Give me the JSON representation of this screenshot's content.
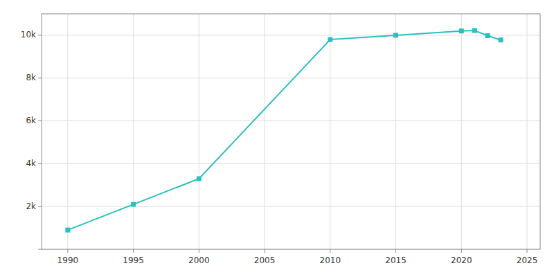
{
  "chart_data": {
    "type": "line",
    "x": [
      1990,
      1995,
      2000,
      2010,
      2015,
      2020,
      2021,
      2022,
      2023
    ],
    "series": [
      {
        "values": [
          900,
          2100,
          3300,
          9800,
          10000,
          10200,
          10220,
          9980,
          9780
        ],
        "color": "#2bbfbf",
        "marker": "square"
      }
    ],
    "xlim": [
      1988,
      2026
    ],
    "ylim": [
      0,
      11000
    ],
    "xticks": [
      1990,
      1995,
      2000,
      2005,
      2010,
      2015,
      2020,
      2025
    ],
    "yticks": [
      {
        "value": 0,
        "label": null
      },
      {
        "value": 2000,
        "label": "2k"
      },
      {
        "value": 4000,
        "label": "4k"
      },
      {
        "value": 6000,
        "label": "6k"
      },
      {
        "value": 8000,
        "label": "8k"
      },
      {
        "value": 10000,
        "label": "10k"
      }
    ],
    "grid": true
  }
}
